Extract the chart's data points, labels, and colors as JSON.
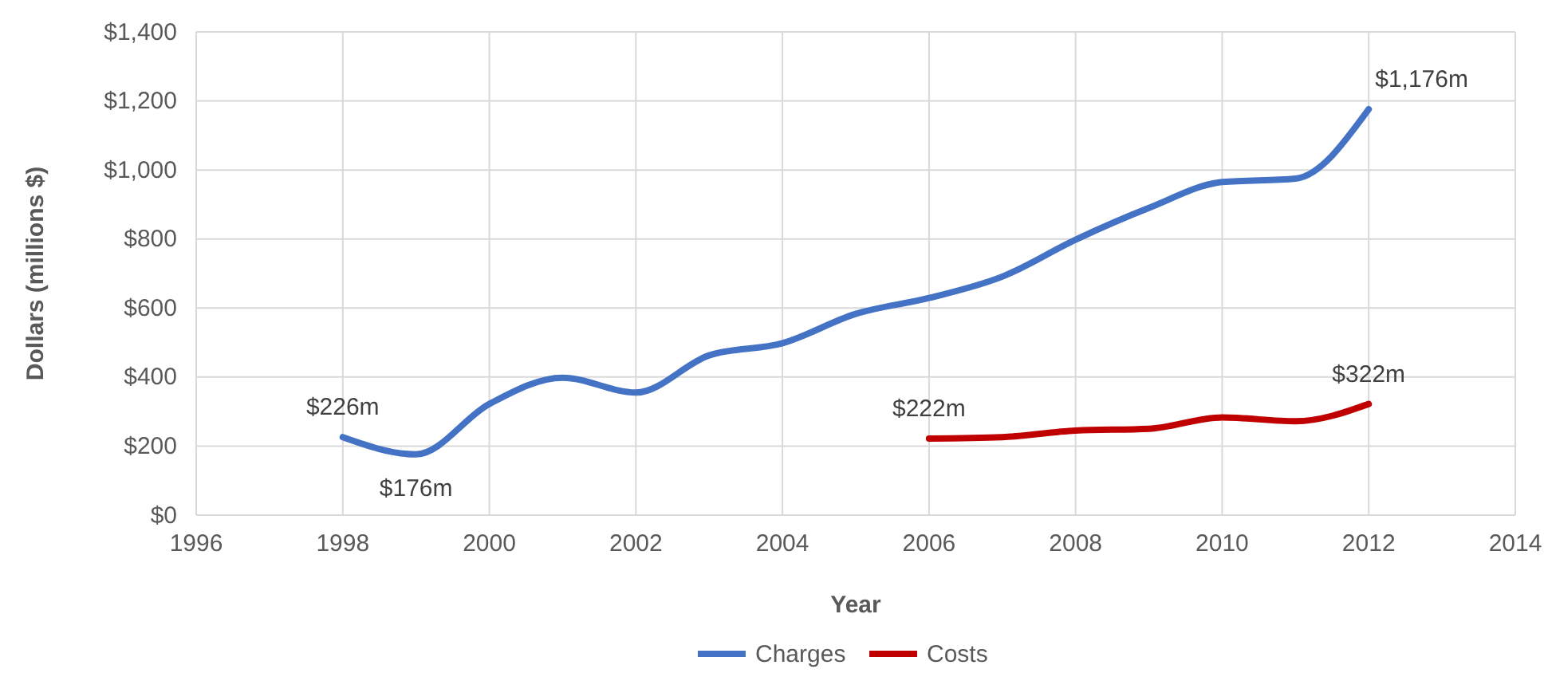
{
  "chart_data": {
    "type": "line",
    "xlabel": "Year",
    "ylabel": "Dollars (millions $)",
    "xlim": [
      1996,
      2014
    ],
    "xticks": [
      1996,
      1998,
      2000,
      2002,
      2004,
      2006,
      2008,
      2010,
      2012,
      2014
    ],
    "ylim": [
      0,
      1400
    ],
    "yticks": [
      {
        "value": 0,
        "label": "$0"
      },
      {
        "value": 200,
        "label": "$200"
      },
      {
        "value": 400,
        "label": "$400"
      },
      {
        "value": 600,
        "label": "$600"
      },
      {
        "value": 800,
        "label": "$800"
      },
      {
        "value": 1000,
        "label": "$1,000"
      },
      {
        "value": 1200,
        "label": "$1,200"
      },
      {
        "value": 1400,
        "label": "$1,400"
      }
    ],
    "grid": true,
    "legend": "bottom",
    "marker": "none",
    "line_style": "solid",
    "series": [
      {
        "name": "Charges",
        "color": "#4472c4",
        "x": [
          1998,
          1999,
          2000,
          2001,
          2002,
          2003,
          2004,
          2005,
          2006,
          2007,
          2008,
          2009,
          2010,
          2011,
          2012
        ],
        "values": [
          226,
          176,
          322,
          398,
          355,
          463,
          498,
          583,
          629,
          691,
          798,
          890,
          965,
          975,
          1176
        ],
        "value_labels": [
          "$226m",
          "$176m",
          null,
          null,
          null,
          null,
          null,
          null,
          null,
          null,
          null,
          null,
          null,
          null,
          "$1,176m"
        ]
      },
      {
        "name": "Costs",
        "color": "#c00000",
        "x": [
          2006,
          2007,
          2008,
          2009,
          2010,
          2011,
          2012
        ],
        "values": [
          222,
          226,
          245,
          250,
          283,
          272,
          322
        ],
        "value_labels": [
          "$222m",
          null,
          null,
          null,
          null,
          null,
          "$322m"
        ]
      }
    ]
  }
}
